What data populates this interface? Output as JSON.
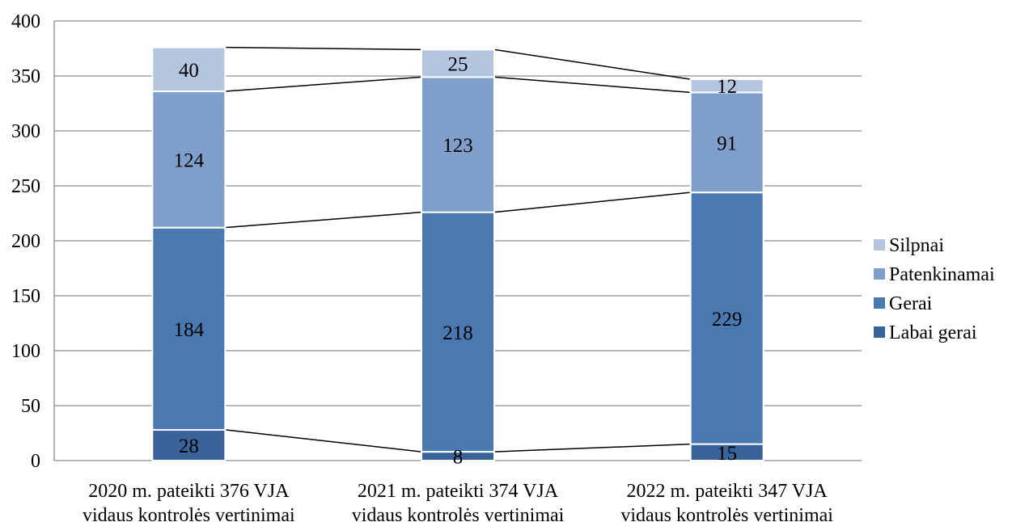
{
  "chart_data": {
    "type": "bar",
    "stacked": true,
    "categories": [
      [
        "2020 m. pateikti 376 VJA",
        "vidaus kontrolės vertinimai"
      ],
      [
        "2021 m. pateikti 374 VJA",
        "vidaus kontrolės vertinimai"
      ],
      [
        "2022 m. pateikti 347 VJA",
        "vidaus kontrolės vertinimai"
      ]
    ],
    "series": [
      {
        "name": "Labai gerai",
        "values": [
          28,
          8,
          15
        ],
        "color": "#3a6499"
      },
      {
        "name": "Gerai",
        "values": [
          184,
          218,
          229
        ],
        "color": "#4a78b0"
      },
      {
        "name": "Patenkinamai",
        "values": [
          124,
          123,
          91
        ],
        "color": "#7f9fca"
      },
      {
        "name": "Silpnai",
        "values": [
          40,
          25,
          12
        ],
        "color": "#b4c5e0"
      }
    ],
    "ylim": [
      0,
      400
    ],
    "yticks": [
      0,
      50,
      100,
      150,
      200,
      250,
      300,
      350,
      400
    ],
    "grid": true,
    "series_lines": true,
    "legend": "right",
    "title": "",
    "xlabel": "",
    "ylabel": ""
  }
}
